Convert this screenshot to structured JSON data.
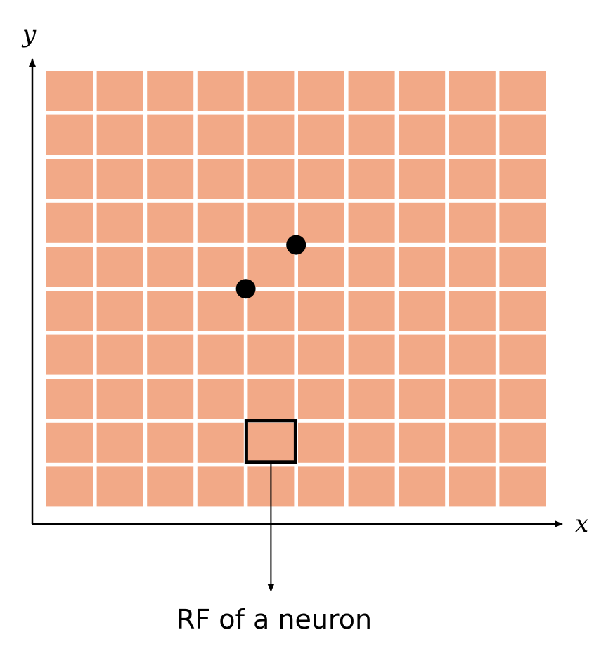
{
  "diagram": {
    "x_axis_label": "x",
    "y_axis_label": "y",
    "caption": "RF of a neuron"
  },
  "grid": {
    "columns": 10,
    "rows": 10,
    "cell_color": "#F2A987",
    "gap_color": "#FFFFFF"
  },
  "points": [
    {
      "col": 4,
      "row": 5
    },
    {
      "col": 5,
      "row": 6
    }
  ],
  "highlight": {
    "col": 5,
    "row": 2,
    "border_color": "#000000"
  },
  "colors": {
    "axis": "#000000",
    "point": "#000000"
  }
}
